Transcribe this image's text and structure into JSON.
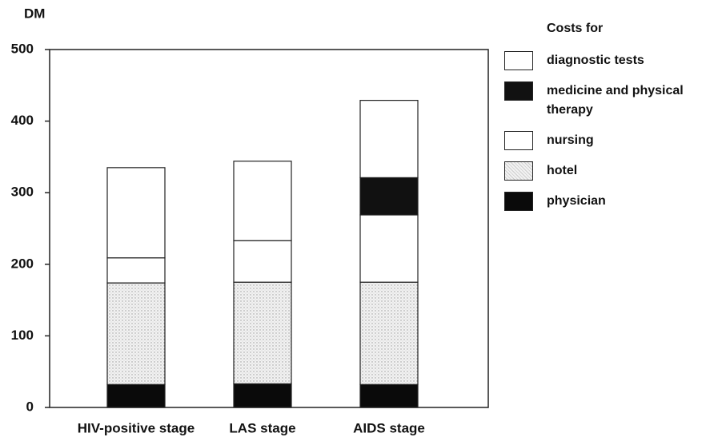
{
  "chart_data": {
    "type": "stacked-bar",
    "y_label": "DM",
    "legend_title": "Costs for",
    "categories": [
      "HIV-positive stage",
      "LAS stage",
      "AIDS stage"
    ],
    "series": [
      {
        "name": "diagnostic tests",
        "color": "#ffffff",
        "values": [
          126,
          111,
          108
        ]
      },
      {
        "name": "medicine and physical therapy",
        "color": "#111111",
        "values": [
          0,
          0,
          52
        ]
      },
      {
        "name": "nursing",
        "color": "#ffffff",
        "values": [
          35,
          58,
          94
        ]
      },
      {
        "name": "hotel",
        "color": "#e2e2e2",
        "values": [
          142,
          142,
          143
        ]
      },
      {
        "name": "physician",
        "color": "#0a0a0a",
        "values": [
          32,
          33,
          32
        ]
      }
    ],
    "ylim": [
      0,
      500
    ],
    "yticks": [
      0,
      100,
      200,
      300,
      400,
      500
    ],
    "grid": false
  }
}
